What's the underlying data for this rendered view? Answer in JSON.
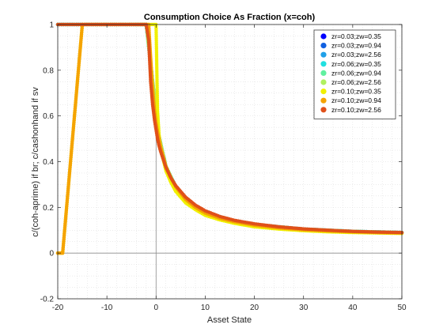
{
  "chart_data": {
    "type": "scatter",
    "title": "Consumption Choice As Fraction (x=coh)",
    "xlabel": "Asset State",
    "ylabel": "c/(coh-aprime) if br; c/cashonhand if sv",
    "xlim": [
      -20,
      50
    ],
    "ylim": [
      -0.2,
      1
    ],
    "xticks": [
      "-20",
      "-10",
      "0",
      "10",
      "20",
      "30",
      "40",
      "50"
    ],
    "yticks": [
      "-0.2",
      "0",
      "0.2",
      "0.4",
      "0.6",
      "0.8",
      "1"
    ],
    "xtick_values": [
      -20,
      -10,
      0,
      10,
      20,
      30,
      40,
      50
    ],
    "ytick_values": [
      -0.2,
      0,
      0.2,
      0.4,
      0.6,
      0.8,
      1
    ],
    "grid": "minor-dotted",
    "reference_lines": {
      "x": 0,
      "y": 0
    },
    "legend_position": "top-right",
    "series": [
      {
        "name": "zr=0.03;zw=0.35",
        "color": "#0000ff",
        "x": [
          -20,
          -15,
          -10,
          -5,
          -2,
          0.5,
          2,
          4,
          7,
          10,
          15,
          20,
          30,
          40,
          50
        ],
        "y": [
          1,
          1,
          1,
          1,
          1,
          0.52,
          0.38,
          0.29,
          0.22,
          0.18,
          0.145,
          0.125,
          0.105,
          0.095,
          0.09
        ]
      },
      {
        "name": "zr=0.03;zw=0.94",
        "color": "#1060e0",
        "x": [
          -20,
          -15,
          -10,
          -5,
          -2,
          0.5,
          2,
          4,
          7,
          10,
          15,
          20,
          30,
          40,
          50
        ],
        "y": [
          1,
          1,
          1,
          1,
          1,
          0.52,
          0.38,
          0.29,
          0.22,
          0.18,
          0.145,
          0.125,
          0.105,
          0.095,
          0.09
        ]
      },
      {
        "name": "zr=0.03;zw=2.56",
        "color": "#20a0e8",
        "x": [
          -20,
          -15,
          -10,
          -5,
          -2,
          0.5,
          2,
          4,
          7,
          10,
          15,
          20,
          30,
          40,
          50
        ],
        "y": [
          1,
          1,
          1,
          1,
          1,
          0.52,
          0.38,
          0.29,
          0.22,
          0.18,
          0.145,
          0.125,
          0.105,
          0.095,
          0.09
        ]
      },
      {
        "name": "zr=0.06;zw=0.35",
        "color": "#20e0e0",
        "x": [
          -20,
          -15,
          -10,
          -5,
          -2,
          0.5,
          2,
          4,
          7,
          10,
          15,
          20,
          30,
          40,
          50
        ],
        "y": [
          1,
          1,
          1,
          1,
          1,
          0.52,
          0.38,
          0.29,
          0.22,
          0.18,
          0.145,
          0.125,
          0.105,
          0.095,
          0.09
        ]
      },
      {
        "name": "zr=0.06;zw=0.94",
        "color": "#60f0a0",
        "x": [
          -20,
          -15,
          -10,
          -5,
          -2,
          0.5,
          2,
          4,
          7,
          10,
          15,
          20,
          30,
          40,
          50
        ],
        "y": [
          1,
          1,
          1,
          1,
          1,
          0.52,
          0.38,
          0.29,
          0.22,
          0.18,
          0.145,
          0.125,
          0.105,
          0.095,
          0.09
        ]
      },
      {
        "name": "zr=0.06;zw=2.56",
        "color": "#b0f060",
        "x": [
          -20,
          -15,
          -10,
          -5,
          -2,
          0.5,
          2,
          4,
          7,
          10,
          15,
          20,
          30,
          40,
          50
        ],
        "y": [
          1,
          1,
          1,
          1,
          1,
          0.52,
          0.38,
          0.29,
          0.22,
          0.18,
          0.145,
          0.125,
          0.105,
          0.095,
          0.09
        ]
      },
      {
        "name": "zr=0.10;zw=0.35",
        "color": "#f0f000",
        "x": [
          -20,
          -19,
          -15,
          -10,
          -5,
          -1,
          0,
          0.3,
          0.6,
          1,
          2,
          3,
          4,
          6,
          8,
          10,
          13,
          16,
          20,
          25,
          30,
          35,
          40,
          45,
          50
        ],
        "y": [
          0,
          0,
          1,
          1,
          1,
          1,
          1,
          0.62,
          0.52,
          0.45,
          0.36,
          0.31,
          0.27,
          0.22,
          0.19,
          0.165,
          0.145,
          0.13,
          0.115,
          0.105,
          0.098,
          0.093,
          0.09,
          0.088,
          0.086
        ]
      },
      {
        "name": "zr=0.10;zw=0.94",
        "color": "#f5a300",
        "x": [
          -20,
          -19,
          -15,
          -10,
          -5,
          -1.5,
          -0.8,
          -0.3,
          0,
          0.3,
          0.6,
          1,
          2,
          3,
          4,
          6,
          8,
          10,
          13,
          16,
          20,
          25,
          30,
          35,
          40,
          45,
          50
        ],
        "y": [
          0,
          0,
          1,
          1,
          1,
          1,
          0.75,
          0.62,
          0.57,
          0.53,
          0.5,
          0.46,
          0.38,
          0.33,
          0.29,
          0.235,
          0.2,
          0.175,
          0.152,
          0.137,
          0.122,
          0.11,
          0.102,
          0.097,
          0.093,
          0.09,
          0.088
        ]
      },
      {
        "name": "zr=0.10;zw=2.56",
        "color": "#e0501a",
        "x": [
          -20,
          -15,
          -10,
          -5,
          -2,
          -1.5,
          -1.1,
          -0.7,
          -0.3,
          0,
          0.3,
          0.6,
          1,
          2,
          3,
          4,
          6,
          8,
          10,
          13,
          16,
          20,
          25,
          30,
          35,
          40,
          45,
          50
        ],
        "y": [
          1,
          1,
          1,
          1,
          1,
          0.93,
          0.75,
          0.65,
          0.58,
          0.54,
          0.5,
          0.47,
          0.44,
          0.375,
          0.33,
          0.295,
          0.245,
          0.21,
          0.185,
          0.16,
          0.143,
          0.128,
          0.115,
          0.106,
          0.1,
          0.095,
          0.092,
          0.09
        ]
      }
    ]
  }
}
